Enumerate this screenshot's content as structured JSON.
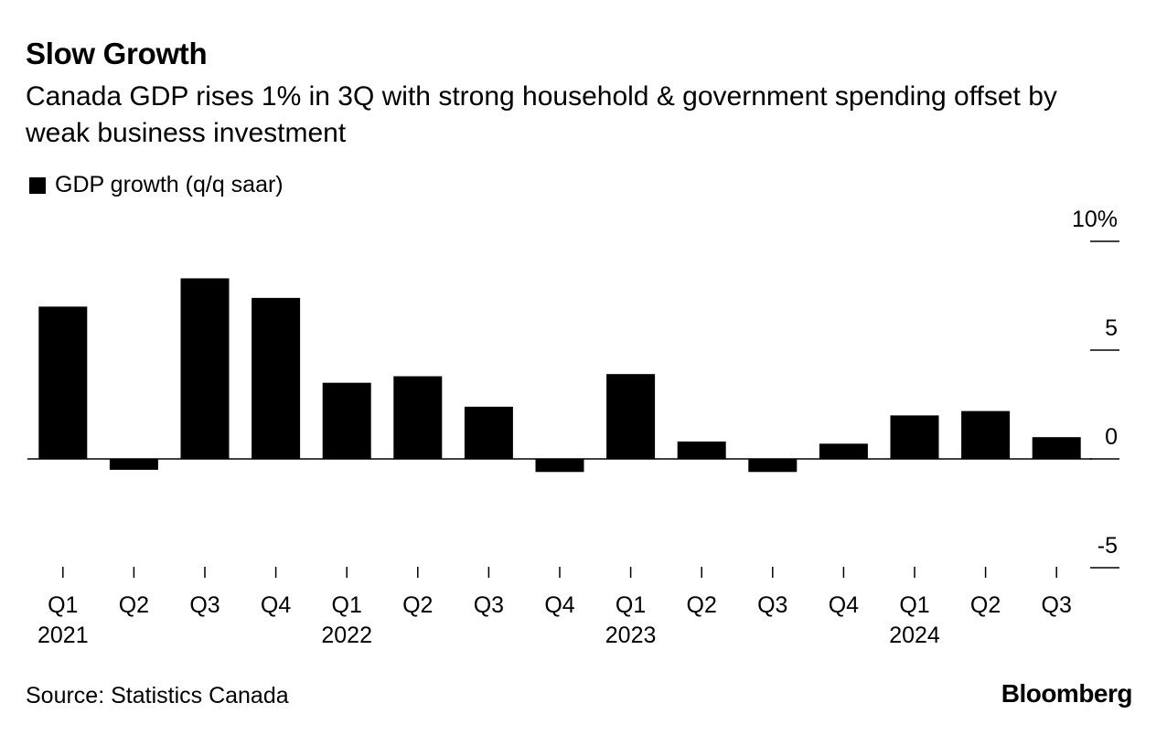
{
  "title": "Slow Growth",
  "subtitle": "Canada GDP rises 1% in 3Q with strong household & government spending offset by weak business investment",
  "source": "Source: Statistics Canada",
  "brand": "Bloomberg",
  "chart_data": {
    "type": "bar",
    "categories": [
      "Q1",
      "Q2",
      "Q3",
      "Q4",
      "Q1",
      "Q2",
      "Q3",
      "Q4",
      "Q1",
      "Q2",
      "Q3",
      "Q4",
      "Q1",
      "Q2",
      "Q3"
    ],
    "year_labels": [
      "2021",
      "",
      "",
      "",
      "2022",
      "",
      "",
      "",
      "2023",
      "",
      "",
      "",
      "2024",
      "",
      ""
    ],
    "series": [
      {
        "name": "GDP growth (q/q saar)",
        "color": "#000000",
        "values": [
          7.0,
          -0.5,
          8.3,
          7.4,
          3.5,
          3.8,
          2.4,
          -0.6,
          3.9,
          0.8,
          -0.6,
          0.7,
          2.0,
          2.2,
          1.0
        ]
      }
    ],
    "y_ticks": [
      {
        "value": 10,
        "label": "10%"
      },
      {
        "value": 5,
        "label": "5"
      },
      {
        "value": 0,
        "label": "0"
      },
      {
        "value": -5,
        "label": "-5"
      }
    ],
    "ylim": [
      -5,
      10
    ],
    "y_axis_side": "right",
    "grid": false,
    "legend_position": "top-left"
  }
}
